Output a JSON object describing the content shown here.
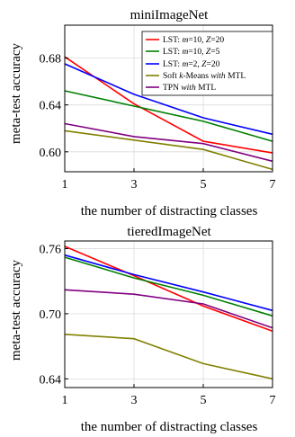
{
  "chart_data": [
    {
      "type": "line",
      "title": "miniImageNet",
      "xlabel": "the number of distracting classes",
      "ylabel": "meta-test accuracy",
      "x": [
        1,
        3,
        5,
        7
      ],
      "xticks": [
        "1",
        "3",
        "5",
        "7"
      ],
      "yticks": [
        0.6,
        0.64,
        0.68
      ],
      "ytick_labels": [
        "0.60",
        "0.64",
        "0.68"
      ],
      "xlim": [
        1,
        7
      ],
      "ylim": [
        0.583,
        0.708
      ],
      "grid": true,
      "legend_position": "top-right",
      "series": [
        {
          "name": "LST: m=10, Z=20",
          "color": "#ff0000",
          "values": [
            0.681,
            0.641,
            0.609,
            0.599
          ]
        },
        {
          "name": "LST: m=10, Z=5",
          "color": "#008000",
          "values": [
            0.652,
            0.639,
            0.626,
            0.609
          ]
        },
        {
          "name": "LST: m=2, Z=20",
          "color": "#0000ff",
          "values": [
            0.675,
            0.649,
            0.629,
            0.615
          ]
        },
        {
          "name": "Soft k-Means with MTL",
          "color": "#808000",
          "values": [
            0.618,
            0.61,
            0.602,
            0.585
          ]
        },
        {
          "name": "TPN with MTL",
          "color": "#800080",
          "values": [
            0.624,
            0.613,
            0.607,
            0.592
          ]
        }
      ]
    },
    {
      "type": "line",
      "title": "tieredImageNet",
      "xlabel": "the number of distracting classes",
      "ylabel": "meta-test accuracy",
      "x": [
        1,
        3,
        5,
        7
      ],
      "xticks": [
        "1",
        "3",
        "5",
        "7"
      ],
      "yticks": [
        0.64,
        0.7,
        0.76
      ],
      "ytick_labels": [
        "0.64",
        "0.70",
        "0.76"
      ],
      "xlim": [
        1,
        7
      ],
      "ylim": [
        0.632,
        0.767
      ],
      "grid": true,
      "series": [
        {
          "name": "LST: m=10, Z=20",
          "color": "#ff0000",
          "values": [
            0.762,
            0.735,
            0.707,
            0.684
          ]
        },
        {
          "name": "LST: m=10, Z=5",
          "color": "#008000",
          "values": [
            0.752,
            0.733,
            0.717,
            0.698
          ]
        },
        {
          "name": "LST: m=2, Z=20",
          "color": "#0000ff",
          "values": [
            0.754,
            0.736,
            0.72,
            0.703
          ]
        },
        {
          "name": "Soft k-Means with MTL",
          "color": "#808000",
          "values": [
            0.681,
            0.677,
            0.654,
            0.64
          ]
        },
        {
          "name": "TPN with MTL",
          "color": "#800080",
          "values": [
            0.722,
            0.718,
            0.709,
            0.687
          ]
        }
      ]
    }
  ]
}
